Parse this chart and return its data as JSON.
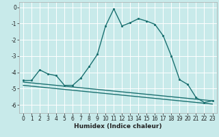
{
  "title": "",
  "xlabel": "Humidex (Indice chaleur)",
  "background_color": "#c8eaea",
  "grid_color": "#ffffff",
  "line_color": "#1a7070",
  "xlim": [
    -0.5,
    23.5
  ],
  "ylim": [
    -6.5,
    0.3
  ],
  "yticks": [
    0,
    -1,
    -2,
    -3,
    -4,
    -5,
    -6
  ],
  "xticks": [
    0,
    1,
    2,
    3,
    4,
    5,
    6,
    7,
    8,
    9,
    10,
    11,
    12,
    13,
    14,
    15,
    16,
    17,
    18,
    19,
    20,
    21,
    22,
    23
  ],
  "line1_x": [
    0,
    1,
    2,
    3,
    4,
    5,
    6,
    7,
    8,
    9,
    10,
    11,
    12,
    13,
    14,
    15,
    16,
    17,
    18,
    19,
    20,
    21,
    22,
    23
  ],
  "line1_y": [
    -4.5,
    -4.5,
    -3.85,
    -4.1,
    -4.2,
    -4.8,
    -4.8,
    -4.35,
    -3.65,
    -2.9,
    -1.15,
    -0.1,
    -1.15,
    -0.95,
    -0.7,
    -0.85,
    -1.05,
    -1.75,
    -3.0,
    -4.45,
    -4.75,
    -5.55,
    -5.85,
    -5.75
  ],
  "line2_x": [
    0,
    1,
    2,
    3,
    4,
    5,
    6,
    7,
    8,
    9,
    10,
    11,
    12,
    13,
    14,
    15,
    16,
    17,
    18,
    19,
    20,
    21,
    22,
    23
  ],
  "line2_y": [
    -4.6,
    -4.65,
    -4.7,
    -4.75,
    -4.8,
    -4.85,
    -4.9,
    -4.95,
    -5.0,
    -5.05,
    -5.1,
    -5.15,
    -5.2,
    -5.25,
    -5.3,
    -5.35,
    -5.4,
    -5.45,
    -5.5,
    -5.55,
    -5.6,
    -5.65,
    -5.7,
    -5.75
  ],
  "line3_x": [
    0,
    1,
    2,
    3,
    4,
    5,
    6,
    7,
    8,
    9,
    10,
    11,
    12,
    13,
    14,
    15,
    16,
    17,
    18,
    19,
    20,
    21,
    22,
    23
  ],
  "line3_y": [
    -4.8,
    -4.85,
    -4.9,
    -4.95,
    -5.0,
    -5.05,
    -5.1,
    -5.15,
    -5.2,
    -5.25,
    -5.3,
    -5.35,
    -5.4,
    -5.45,
    -5.5,
    -5.55,
    -5.6,
    -5.65,
    -5.7,
    -5.75,
    -5.8,
    -5.85,
    -5.9,
    -5.95
  ],
  "marker_size": 2.5,
  "linewidth": 1.0,
  "tick_fontsize": 5.5,
  "xlabel_fontsize": 6.5
}
